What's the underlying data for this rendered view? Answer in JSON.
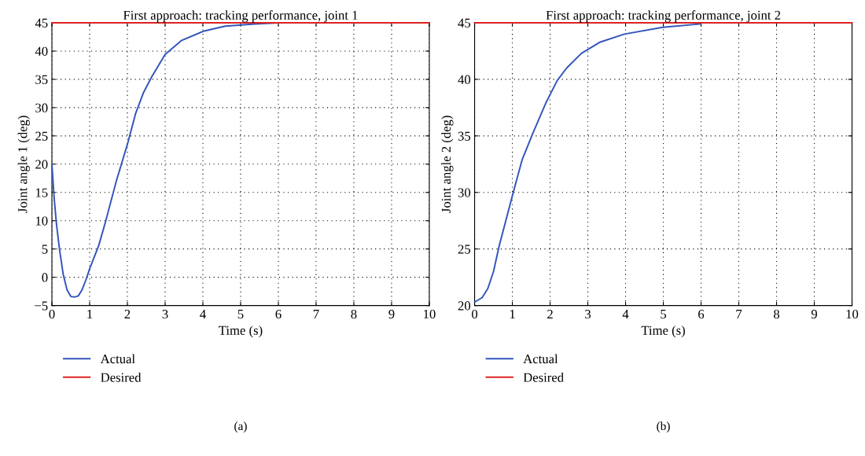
{
  "chart_data": [
    {
      "type": "line",
      "title": "First approach: tracking performance, joint 1",
      "xlabel": "Time (s)",
      "ylabel": "Joint angle 1 (deg)",
      "xlim": [
        0,
        10
      ],
      "xticks": [
        0,
        1,
        2,
        3,
        4,
        5,
        6,
        7,
        8,
        9,
        10
      ],
      "ylim": [
        -5,
        45
      ],
      "yticks": [
        -5,
        0,
        5,
        10,
        15,
        20,
        25,
        30,
        35,
        40,
        45
      ],
      "grid": true,
      "legend": "bottom",
      "line_style": "solid",
      "annotations": [
        "(a)"
      ],
      "series": [
        {
          "name": "Actual",
          "color": "#3355bb",
          "x": [
            0,
            0.06,
            0.12,
            0.2,
            0.3,
            0.4,
            0.5,
            0.6,
            0.7,
            0.8,
            0.9,
            1.0,
            1.24,
            1.42,
            1.71,
            2.0,
            2.22,
            2.43,
            2.65,
            3.0,
            3.44,
            4.01,
            4.59,
            5.38,
            6.0
          ],
          "values": [
            20,
            14,
            9.5,
            5,
            0.5,
            -2.2,
            -3.4,
            -3.5,
            -3.3,
            -2.2,
            -0.5,
            1.5,
            5.6,
            9.8,
            17.1,
            23.5,
            29,
            32.7,
            35.5,
            39.4,
            41.9,
            43.5,
            44.4,
            44.8,
            45
          ]
        },
        {
          "name": "Desired",
          "color": "#dd2222",
          "x": [
            0,
            10
          ],
          "values": [
            45,
            45
          ]
        }
      ]
    },
    {
      "type": "line",
      "title": "First approach: tracking performance, joint 2",
      "xlabel": "Time (s)",
      "ylabel": "Joint angle 2 (deg)",
      "xlim": [
        0,
        10
      ],
      "xticks": [
        0,
        1,
        2,
        3,
        4,
        5,
        6,
        7,
        8,
        9,
        10
      ],
      "ylim": [
        20,
        45
      ],
      "yticks": [
        20,
        25,
        30,
        35,
        40,
        45
      ],
      "grid": true,
      "legend": "bottom",
      "line_style": "solid",
      "annotations": [
        "(b)"
      ],
      "series": [
        {
          "name": "Actual",
          "color": "#3355bb",
          "x": [
            0,
            0.2,
            0.35,
            0.5,
            0.65,
            1.0,
            1.26,
            1.54,
            1.9,
            2.19,
            2.44,
            2.83,
            3.33,
            3.97,
            4.98,
            5.98
          ],
          "values": [
            20.3,
            20.7,
            21.5,
            23,
            25.25,
            29.7,
            32.9,
            35.2,
            38.0,
            39.9,
            41.0,
            42.3,
            43.3,
            44.0,
            44.6,
            44.9
          ]
        },
        {
          "name": "Desired",
          "color": "#dd2222",
          "x": [
            0,
            10
          ],
          "values": [
            45,
            45
          ]
        }
      ]
    }
  ]
}
